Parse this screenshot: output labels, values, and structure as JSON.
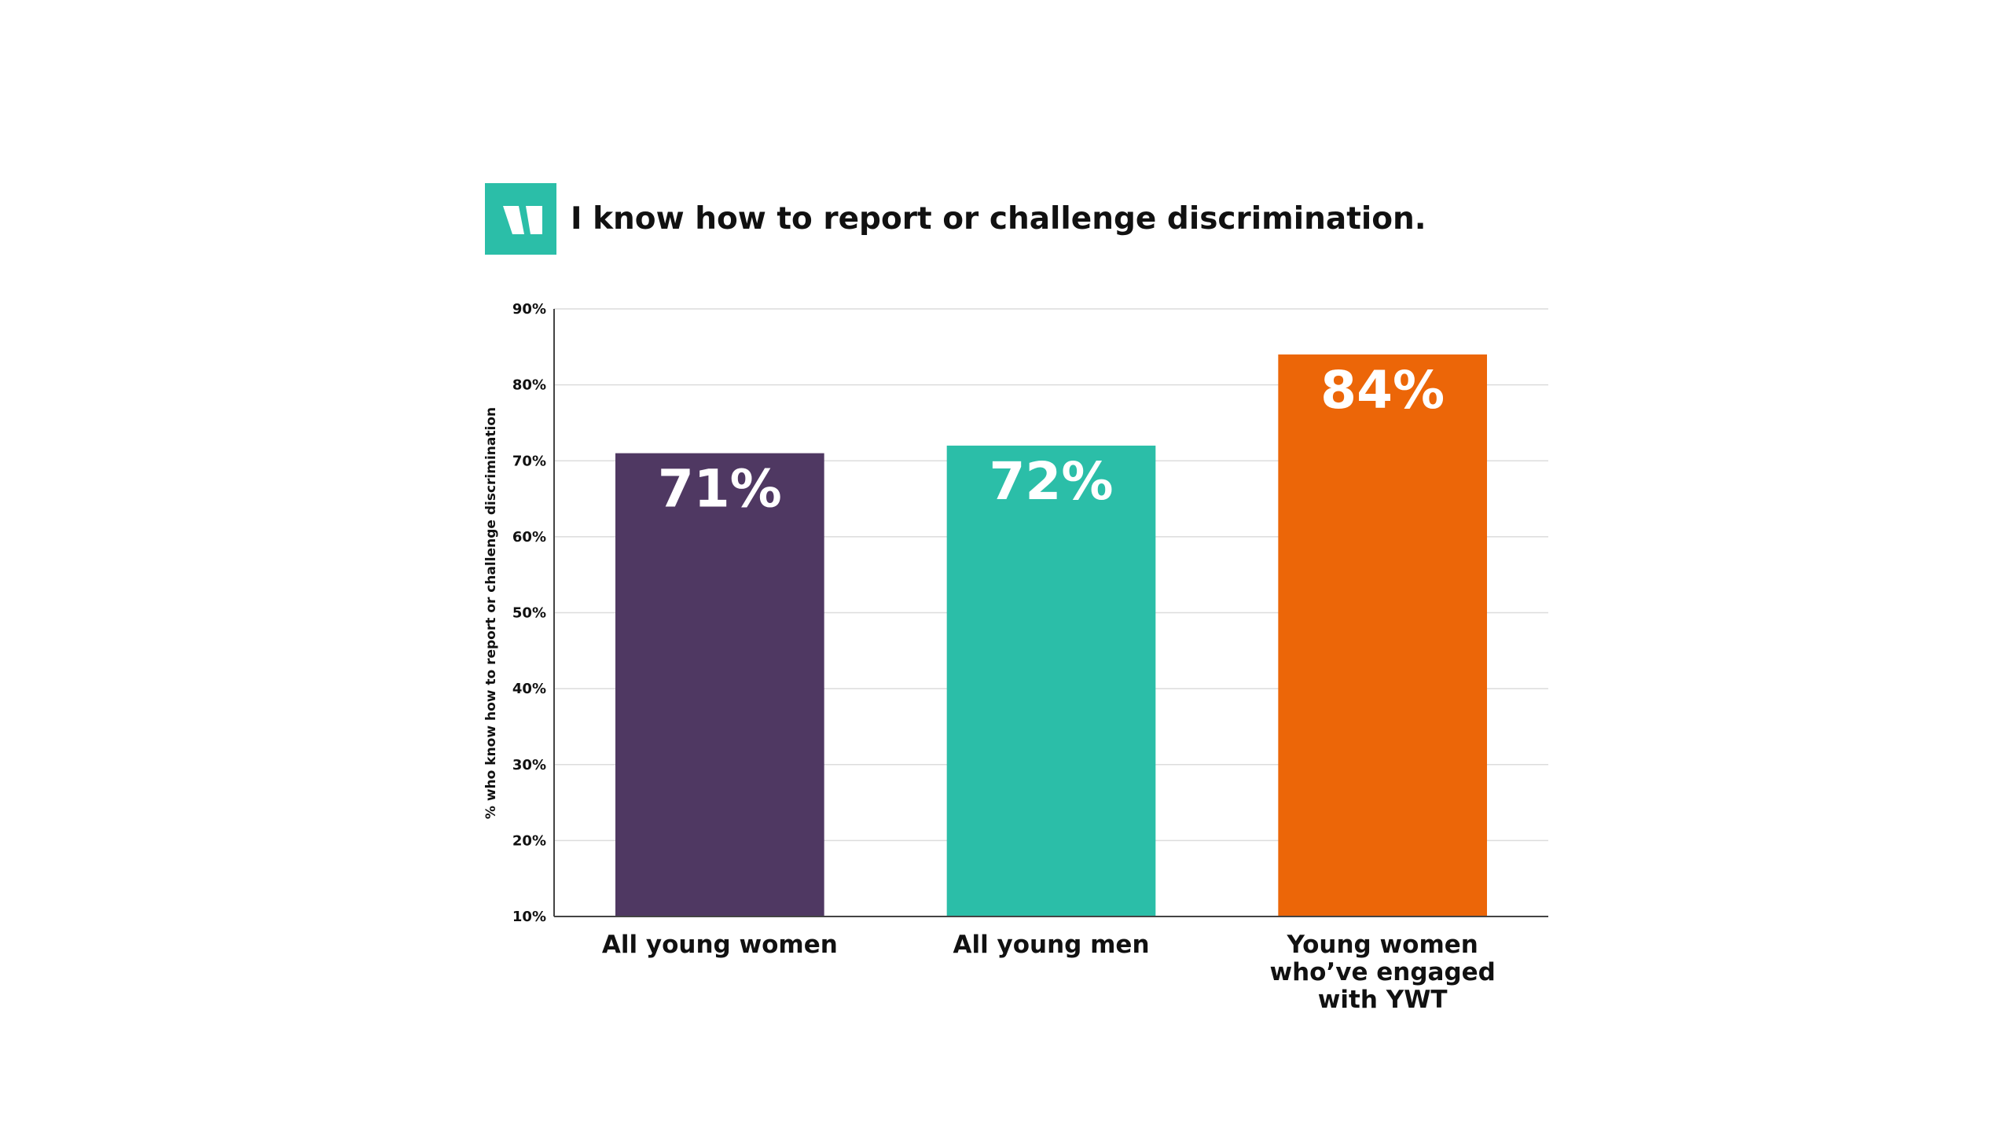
{
  "chart_data": {
    "type": "bar",
    "title": "I know how to report or challenge discrimination.",
    "ylabel": "% who know how to report or challenge discrimination",
    "xlabel": "",
    "ylim": [
      10,
      90
    ],
    "yticks": [
      10,
      20,
      30,
      40,
      50,
      60,
      70,
      80,
      90
    ],
    "ytick_suffix": "%",
    "grid": true,
    "categories": [
      [
        "All young women"
      ],
      [
        "All young men"
      ],
      [
        "Young women",
        "who’ve engaged",
        "with YWT"
      ]
    ],
    "values": [
      71,
      72,
      84
    ],
    "data_labels": [
      "71%",
      "72%",
      "84%"
    ],
    "colors": [
      "#4f3862",
      "#2bbea8",
      "#ec6608"
    ],
    "logo_color": "#2bbea8",
    "logo_icon": "quote-mark-icon"
  }
}
